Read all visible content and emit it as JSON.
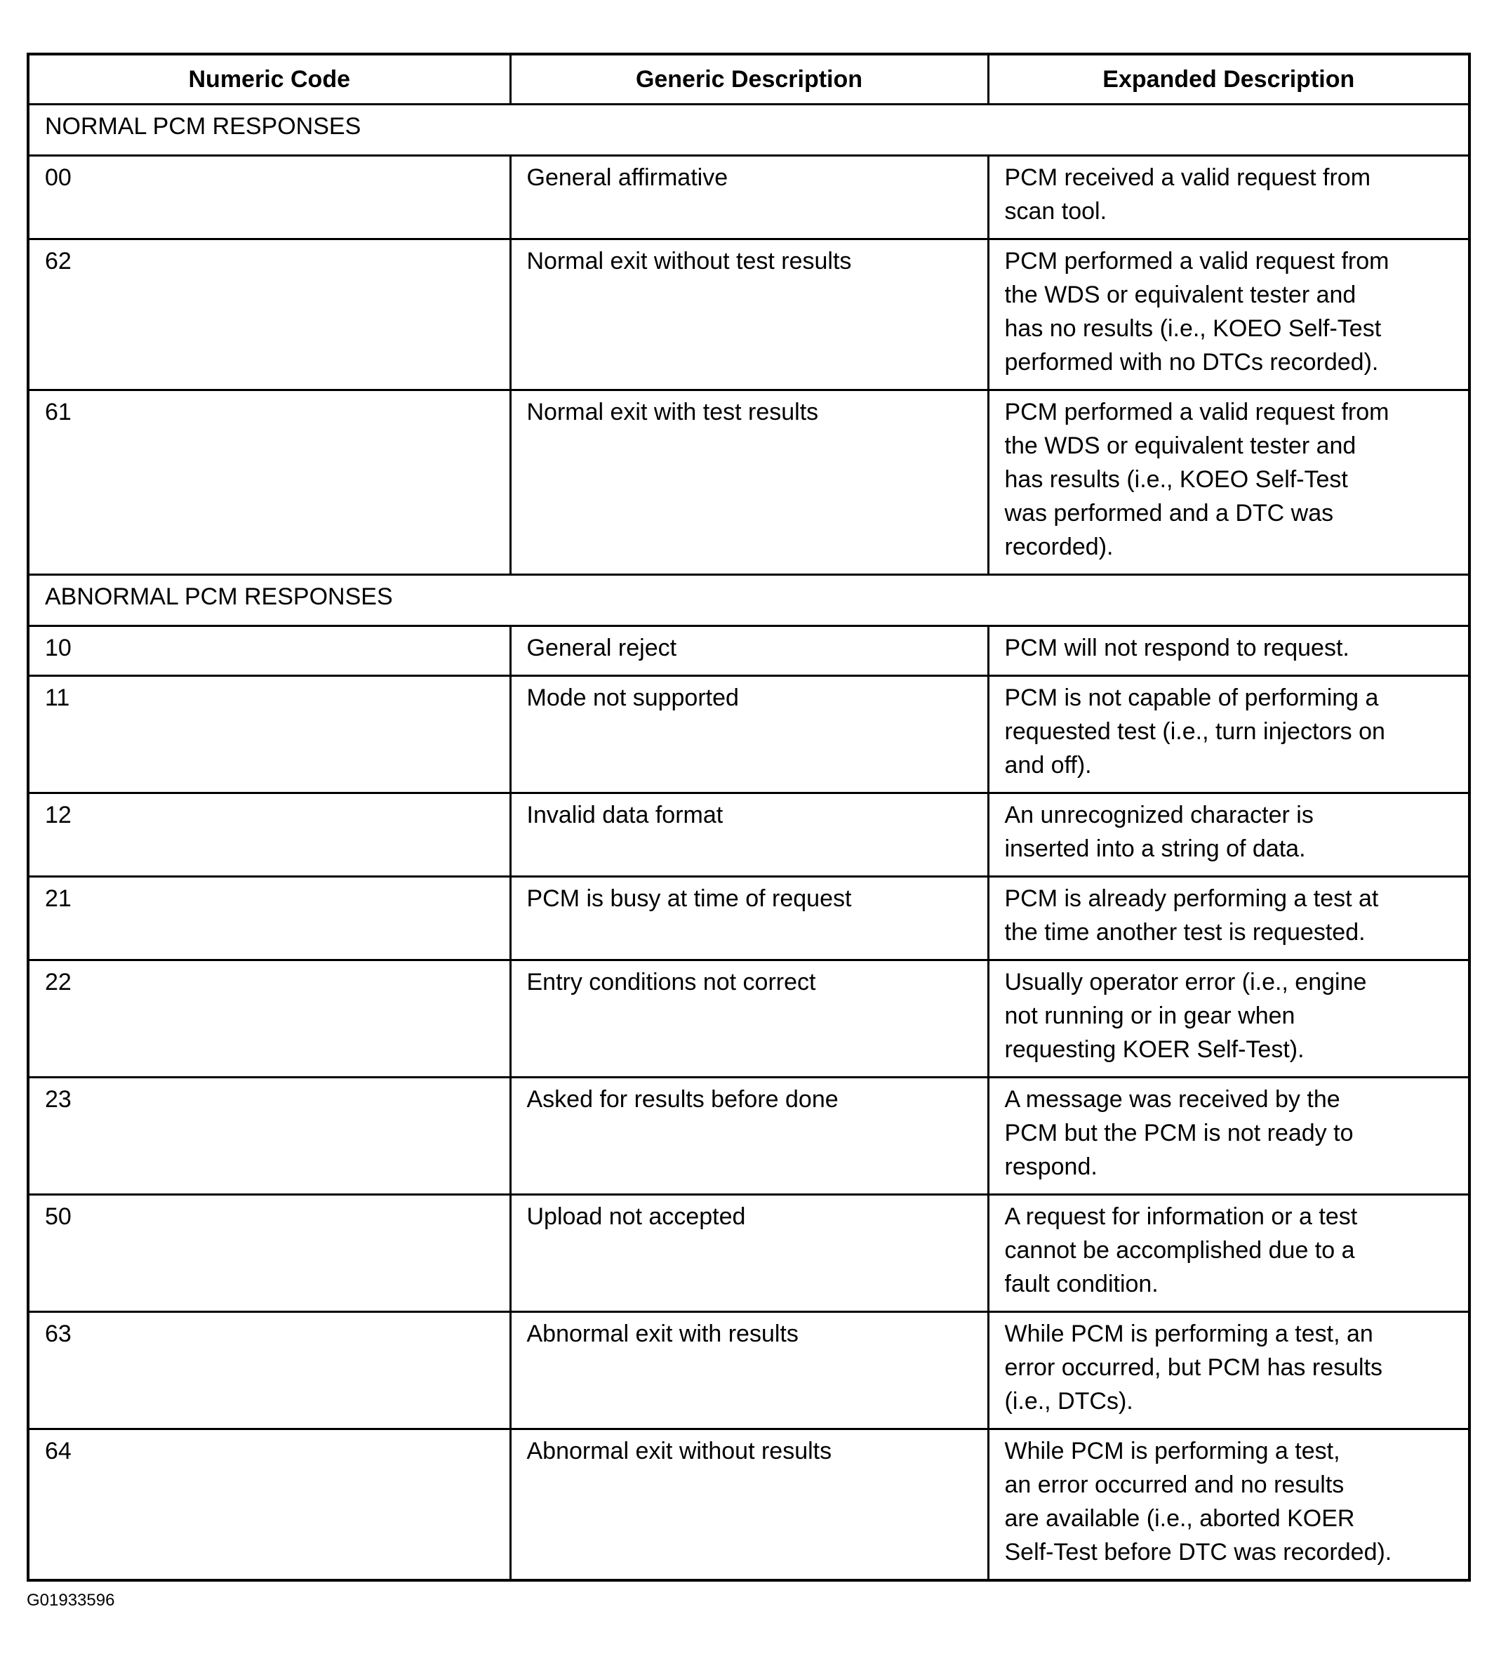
{
  "headers": [
    "Numeric Code",
    "Generic Description",
    "Expanded Description"
  ],
  "sections": [
    {
      "title": "NORMAL PCM RESPONSES",
      "rows": [
        {
          "code": "00",
          "generic": "General affirmative",
          "expanded": "PCM received a valid request from\nscan tool."
        },
        {
          "code": "62",
          "generic": "Normal exit without test results",
          "expanded": "PCM performed a valid request from\nthe WDS or equivalent tester and\nhas no results (i.e., KOEO Self-Test\nperformed with no DTCs recorded)."
        },
        {
          "code": "61",
          "generic": "Normal exit with test results",
          "expanded": "PCM performed a valid request from\nthe WDS or equivalent tester and\nhas results (i.e., KOEO Self-Test\nwas performed and a DTC was\nrecorded)."
        }
      ]
    },
    {
      "title": "ABNORMAL PCM RESPONSES",
      "rows": [
        {
          "code": "10",
          "generic": "General reject",
          "expanded": "PCM will not respond to request."
        },
        {
          "code": "11",
          "generic": "Mode not supported",
          "expanded": "PCM is not capable of performing a\nrequested test (i.e., turn injectors on\nand off)."
        },
        {
          "code": "12",
          "generic": "Invalid data format",
          "expanded": "An unrecognized character is\ninserted into a string of data."
        },
        {
          "code": "21",
          "generic": "PCM is busy at time of request",
          "expanded": "PCM is already performing a test at\nthe time another test is requested."
        },
        {
          "code": "22",
          "generic": "Entry conditions not correct",
          "expanded": "Usually operator error (i.e., engine\nnot running or in gear when\nrequesting KOER Self-Test)."
        },
        {
          "code": "23",
          "generic": "Asked for results before done",
          "expanded": "A message was received by the\nPCM but the PCM is not ready to\nrespond."
        },
        {
          "code": "50",
          "generic": "Upload not accepted",
          "expanded": "A request for information or a test\ncannot be accomplished due to a\nfault condition."
        },
        {
          "code": "63",
          "generic": "Abnormal exit with results",
          "expanded": "While PCM is performing a test, an\nerror occurred, but PCM has results\n(i.e., DTCs)."
        },
        {
          "code": "64",
          "generic": "Abnormal exit without results",
          "expanded": "While PCM is performing a test,\nan error occurred and no results\nare available (i.e., aborted KOER\nSelf-Test before DTC was recorded)."
        }
      ]
    }
  ],
  "footer": {
    "figure_id": "G01933596"
  }
}
